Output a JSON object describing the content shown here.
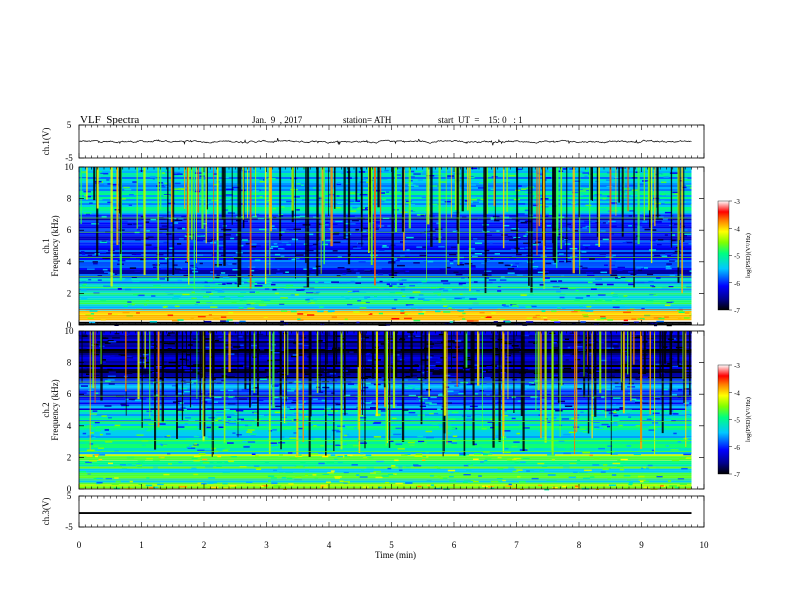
{
  "header": {
    "title": "VLF  Spectra",
    "date": "Jan.  9  , 2017",
    "station": "station= ATH",
    "start": "start  UT  =    15: 0   : 1"
  },
  "chart_data": [
    {
      "type": "line",
      "panel": "ch1-waveform",
      "ylabel": "ch.1(V)",
      "ylim": [
        -5,
        5
      ],
      "yticks": [
        5,
        -5
      ],
      "xlim": [
        0,
        10
      ],
      "series": [
        {
          "mean": 0,
          "range": [
            -0.5,
            0.5
          ],
          "end_x": 9.8
        }
      ]
    },
    {
      "type": "heatmap",
      "panel": "ch1-spectrogram",
      "ylabel": "ch.1\nFrequency  (kHz)",
      "ylim": [
        0,
        10
      ],
      "yticks": [
        0,
        2,
        4,
        6,
        8,
        10
      ],
      "xlim": [
        0,
        10
      ],
      "data_extent_x": [
        0,
        9.8
      ],
      "colorbar": {
        "label": "log(PSD)(V²/Hz)",
        "ticks": [
          -3,
          -4,
          -5,
          -6,
          -7
        ],
        "range": [
          -7,
          -3
        ]
      },
      "bands_khz": [
        {
          "from": 0,
          "to": 0.2,
          "level": -7
        },
        {
          "from": 0.3,
          "to": 0.9,
          "level": -4.2
        },
        {
          "from": 0.9,
          "to": 2.2,
          "level": -5.2
        },
        {
          "from": 2.2,
          "to": 3.0,
          "level": -5.6
        },
        {
          "from": 3.0,
          "to": 5.0,
          "level": -6.1
        },
        {
          "from": 5.0,
          "to": 7.0,
          "level": -6.0
        },
        {
          "from": 7.0,
          "to": 10.0,
          "level": -5.4
        }
      ]
    },
    {
      "type": "heatmap",
      "panel": "ch2-spectrogram",
      "ylabel": "ch.2\nFrequency  (kHz)",
      "ylim": [
        0,
        10
      ],
      "yticks": [
        0,
        2,
        4,
        6,
        8,
        10
      ],
      "xlim": [
        0,
        10
      ],
      "data_extent_x": [
        0,
        9.8
      ],
      "colorbar": {
        "label": "log(PSD)(V²/Hz)",
        "ticks": [
          -3,
          -4,
          -5,
          -6,
          -7
        ],
        "range": [
          -7,
          -3
        ]
      },
      "bands_khz": [
        {
          "from": 0,
          "to": 0.3,
          "level": -4.5
        },
        {
          "from": 0.3,
          "to": 1.8,
          "level": -5.0
        },
        {
          "from": 1.8,
          "to": 2.2,
          "level": -4.6
        },
        {
          "from": 2.2,
          "to": 5.0,
          "level": -5.3
        },
        {
          "from": 5.0,
          "to": 7.0,
          "level": -5.9
        },
        {
          "from": 7.0,
          "to": 10.0,
          "level": -6.6
        }
      ]
    },
    {
      "type": "line",
      "panel": "ch3-waveform",
      "ylabel": "ch.3(V)",
      "ylim": [
        -5,
        5
      ],
      "yticks": [
        5,
        -5
      ],
      "xlim": [
        0,
        10
      ],
      "xlabel": "Time  (min)",
      "xticks": [
        0,
        1,
        2,
        3,
        4,
        5,
        6,
        7,
        8,
        9,
        10
      ],
      "series": [
        {
          "mean": -0.5,
          "range": [
            -0.8,
            -0.2
          ],
          "end_x": 9.8
        }
      ]
    }
  ]
}
